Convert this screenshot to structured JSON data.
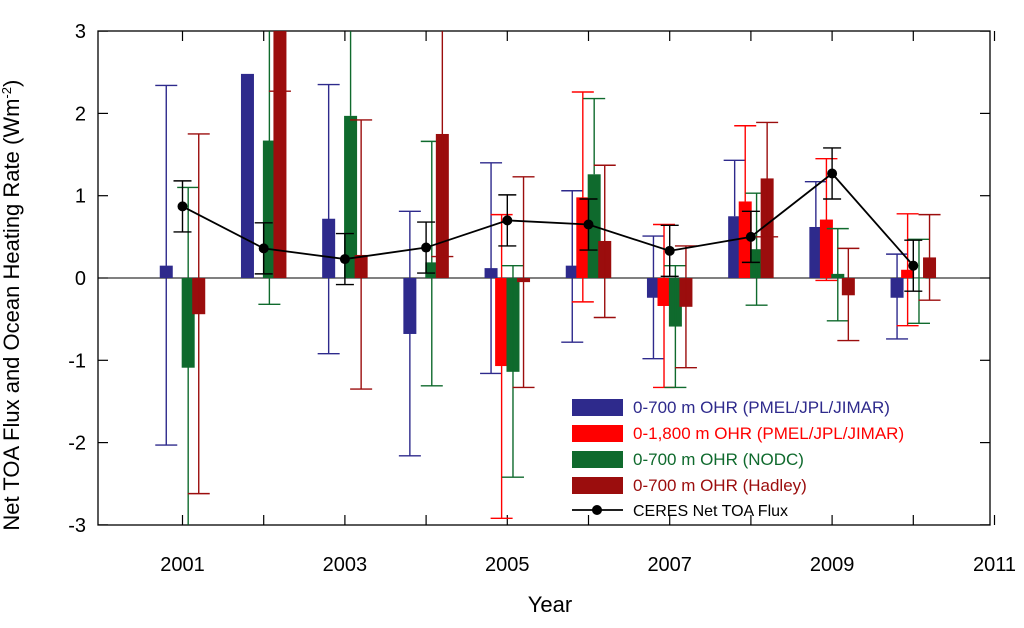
{
  "chart_data": {
    "type": "bar",
    "ylabel_main": "Net TOA Flux and Ocean Heating Rate (Wm",
    "ylabel_exp": "-2",
    "ylabel_close": ")",
    "xlabel": "Year",
    "ylim": [
      -3,
      3
    ],
    "xlim": [
      2000,
      2011
    ],
    "y_ticks": [
      -3,
      -2,
      -1,
      0,
      1,
      2,
      3
    ],
    "x_tick_labels": [
      2001,
      2003,
      2005,
      2007,
      2009,
      2011
    ],
    "legend_position": "bottom-right",
    "series": [
      {
        "name": "0-700 m OHR (PMEL/JPL/JIMAR)",
        "color": "#2e2a8c",
        "offset": -0.2,
        "values": [
          0.15,
          2.48,
          0.72,
          -0.68,
          0.12,
          0.15,
          -0.24,
          0.75,
          0.62,
          -0.24
        ],
        "err_low": [
          -2.03,
          null,
          -0.92,
          -2.16,
          -1.16,
          -0.78,
          -0.98,
          null,
          null,
          -0.74
        ],
        "err_high": [
          2.34,
          null,
          2.35,
          0.81,
          1.4,
          1.06,
          0.51,
          1.43,
          1.17,
          0.29
        ]
      },
      {
        "name": "0-1,800 m OHR (PMEL/JPL/JIMAR)",
        "color": "#ff0000",
        "offset": -0.07,
        "values": [
          null,
          null,
          null,
          null,
          -1.07,
          0.98,
          -0.34,
          0.93,
          0.71,
          0.1
        ],
        "err_low": [
          null,
          null,
          null,
          null,
          -2.92,
          -0.29,
          -1.33,
          null,
          -0.03,
          -0.58
        ],
        "err_high": [
          null,
          null,
          null,
          null,
          0.77,
          2.26,
          0.65,
          1.85,
          1.45,
          0.78
        ]
      },
      {
        "name": "0-700 m OHR (NODC)",
        "color": "#0f6a2d",
        "offset": 0.07,
        "values": [
          -1.09,
          1.67,
          1.97,
          0.19,
          -1.14,
          1.26,
          -0.59,
          0.35,
          0.05,
          0.0
        ],
        "err_low": [
          -3.0,
          -0.32,
          null,
          -1.31,
          -2.42,
          null,
          -1.33,
          -0.33,
          -0.52,
          -0.55
        ],
        "err_high": [
          1.1,
          3.0,
          3.0,
          1.66,
          0.15,
          2.18,
          0.15,
          1.03,
          0.6,
          0.47
        ]
      },
      {
        "name": "0-700 m OHR (Hadley)",
        "color": "#9b0d0d",
        "offset": 0.2,
        "values": [
          -0.44,
          3.0,
          0.28,
          1.75,
          -0.05,
          0.45,
          -0.35,
          1.21,
          -0.21,
          0.25
        ],
        "err_low": [
          -2.62,
          null,
          -1.35,
          0.26,
          -1.33,
          -0.48,
          -1.09,
          0.5,
          -0.76,
          -0.27
        ],
        "err_high": [
          1.75,
          2.27,
          1.92,
          3.0,
          1.23,
          1.37,
          0.39,
          1.89,
          0.36,
          0.77
        ]
      }
    ],
    "line_series": {
      "name": "CERES Net TOA Flux",
      "color": "#000000",
      "x": [
        2001,
        2002,
        2003,
        2004,
        2005,
        2006,
        2007,
        2008,
        2009,
        2010
      ],
      "values": [
        0.87,
        0.36,
        0.23,
        0.37,
        0.7,
        0.65,
        0.33,
        0.5,
        1.27,
        0.15
      ],
      "err_low": [
        0.56,
        0.05,
        -0.08,
        0.06,
        0.39,
        0.34,
        0.02,
        0.19,
        0.96,
        -0.16
      ],
      "err_high": [
        1.18,
        0.67,
        0.54,
        0.68,
        1.01,
        0.96,
        0.64,
        0.81,
        1.58,
        0.46
      ]
    }
  }
}
